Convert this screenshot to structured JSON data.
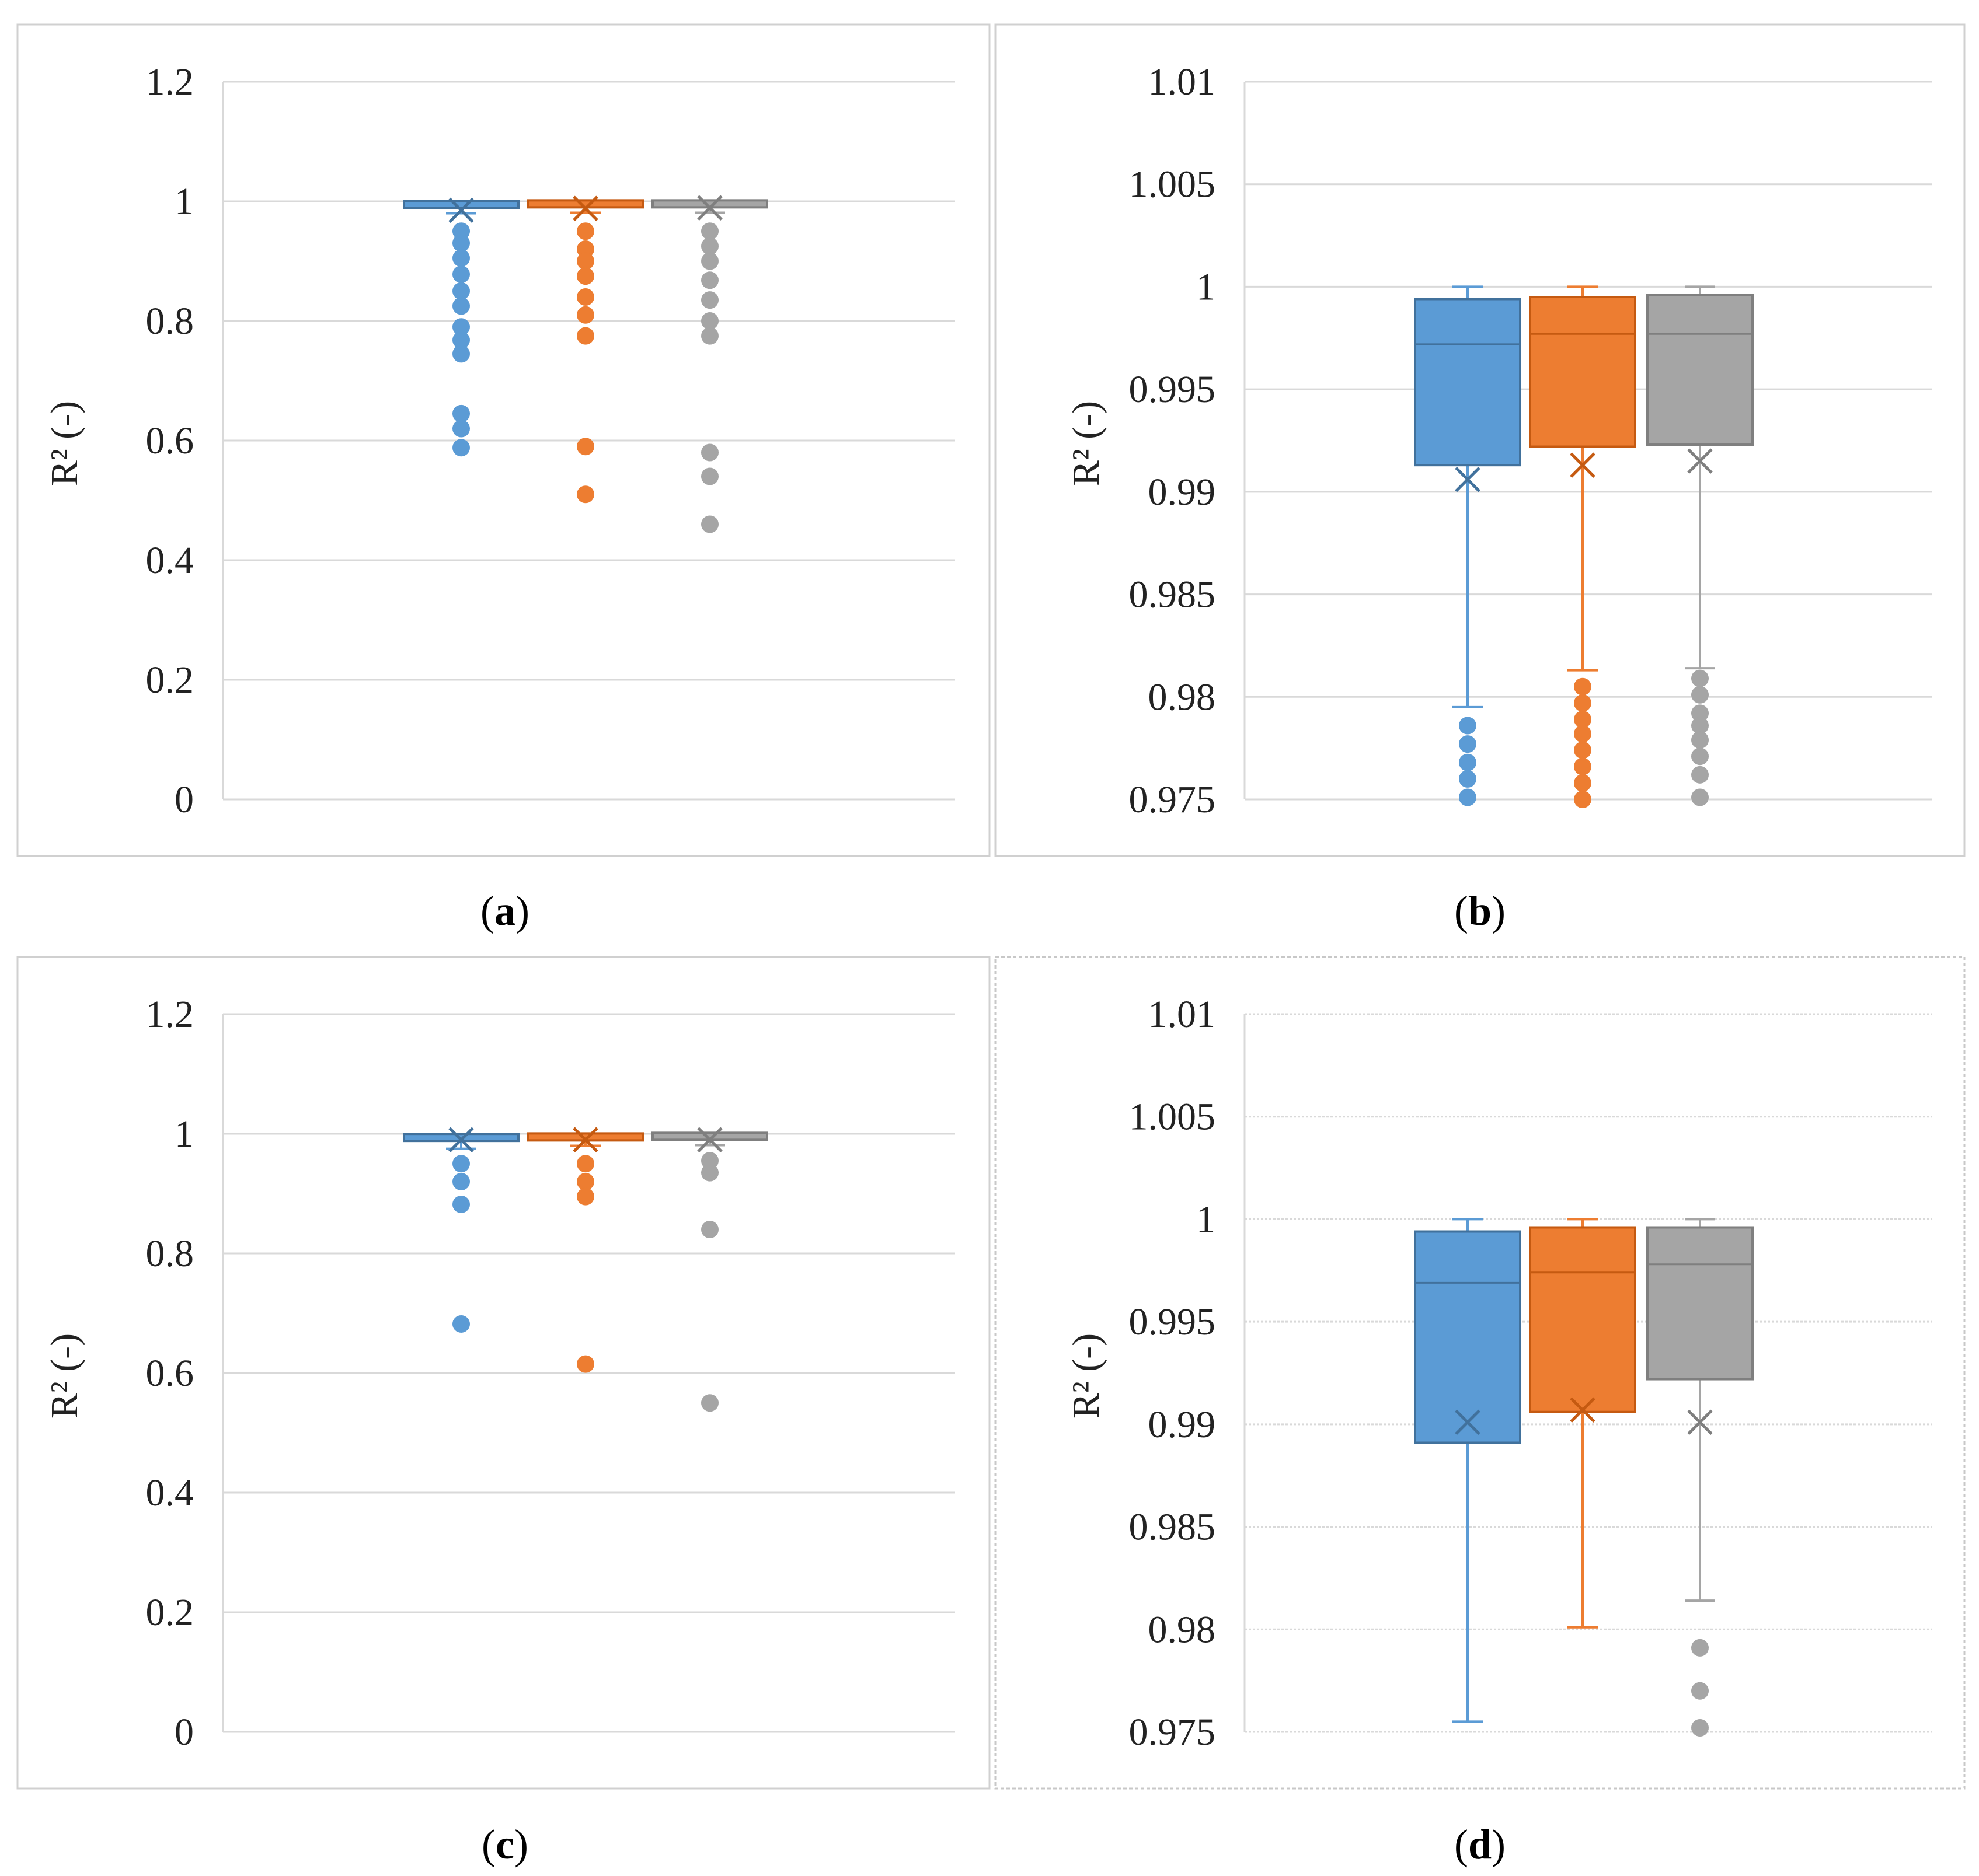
{
  "chart_data": [
    {
      "type": "box",
      "panel": "a",
      "caption": {
        "open": "(",
        "letter": "a",
        "close": ")"
      },
      "ylabel": "R² (-)",
      "ylim": [
        0,
        1.2
      ],
      "yticks": [
        "0",
        "0.2",
        "0.4",
        "0.6",
        "0.8",
        "1",
        "1.2"
      ],
      "ytick_values": [
        0,
        0.2,
        0.4,
        0.6,
        0.8,
        1.0,
        1.2
      ],
      "series": [
        {
          "color": "#5b9bd5",
          "stroke": "#41719c",
          "q1": 0.99,
          "median": 0.997,
          "q3": 0.999,
          "whisker_low": 0.98,
          "whisker_high": 1.0,
          "mean": 0.985,
          "outliers": [
            0.95,
            0.93,
            0.905,
            0.878,
            0.85,
            0.825,
            0.79,
            0.768,
            0.745,
            0.645,
            0.62,
            0.588
          ]
        },
        {
          "color": "#ed7d31",
          "stroke": "#c55a11",
          "q1": 0.992,
          "median": 0.9975,
          "q3": 0.9995,
          "whisker_low": 0.981,
          "whisker_high": 1.0,
          "mean": 0.988,
          "outliers": [
            0.95,
            0.92,
            0.9,
            0.875,
            0.84,
            0.81,
            0.775,
            0.59,
            0.51
          ]
        },
        {
          "color": "#a5a5a5",
          "stroke": "#7f7f7f",
          "q1": 0.992,
          "median": 0.9975,
          "q3": 0.9995,
          "whisker_low": 0.981,
          "whisker_high": 1.0,
          "mean": 0.989,
          "outliers": [
            0.95,
            0.925,
            0.9,
            0.868,
            0.835,
            0.8,
            0.775,
            0.58,
            0.54,
            0.46
          ]
        }
      ]
    },
    {
      "type": "box",
      "panel": "b",
      "caption": {
        "open": "(",
        "letter": "b",
        "close": ")"
      },
      "ylabel": "R² (-)",
      "ylim": [
        0.975,
        1.01
      ],
      "yticks": [
        "0.975",
        "0.98",
        "0.985",
        "0.99",
        "0.995",
        "1",
        "1.005",
        "1.01"
      ],
      "ytick_values": [
        0.975,
        0.98,
        0.985,
        0.99,
        0.995,
        1.0,
        1.005,
        1.01
      ],
      "series": [
        {
          "color": "#5b9bd5",
          "stroke": "#41719c",
          "q1": 0.9913,
          "median": 0.9972,
          "q3": 0.9994,
          "whisker_low": 0.9795,
          "whisker_high": 1.0,
          "mean": 0.9906,
          "outliers": [
            0.9786,
            0.9777,
            0.9768,
            0.976,
            0.9751
          ]
        },
        {
          "color": "#ed7d31",
          "stroke": "#c55a11",
          "q1": 0.9922,
          "median": 0.9977,
          "q3": 0.9995,
          "whisker_low": 0.9813,
          "whisker_high": 1.0,
          "mean": 0.9913,
          "outliers": [
            0.9805,
            0.9797,
            0.9789,
            0.9782,
            0.9774,
            0.9766,
            0.9758,
            0.975
          ]
        },
        {
          "color": "#a5a5a5",
          "stroke": "#7f7f7f",
          "q1": 0.9923,
          "median": 0.9977,
          "q3": 0.9996,
          "whisker_low": 0.9814,
          "whisker_high": 1.0,
          "mean": 0.9915,
          "outliers": [
            0.9809,
            0.9801,
            0.9792,
            0.9786,
            0.9779,
            0.9771,
            0.9762,
            0.9751
          ]
        }
      ]
    },
    {
      "type": "box",
      "panel": "c",
      "caption": {
        "open": "(",
        "letter": "c",
        "close": ")"
      },
      "ylabel": "R² (-)",
      "ylim": [
        0,
        1.2
      ],
      "yticks": [
        "0",
        "0.2",
        "0.4",
        "0.6",
        "0.8",
        "1",
        "1.2"
      ],
      "ytick_values": [
        0,
        0.2,
        0.4,
        0.6,
        0.8,
        1.0,
        1.2
      ],
      "series": [
        {
          "color": "#5b9bd5",
          "stroke": "#41719c",
          "q1": 0.989,
          "median": 0.997,
          "q3": 0.999,
          "whisker_low": 0.975,
          "whisker_high": 1.0,
          "mean": 0.99,
          "outliers": [
            0.95,
            0.92,
            0.882,
            0.682
          ]
        },
        {
          "color": "#ed7d31",
          "stroke": "#c55a11",
          "q1": 0.99,
          "median": 0.997,
          "q3": 0.9995,
          "whisker_low": 0.98,
          "whisker_high": 1.0,
          "mean": 0.99,
          "outliers": [
            0.95,
            0.92,
            0.895,
            0.615
          ]
        },
        {
          "color": "#a5a5a5",
          "stroke": "#7f7f7f",
          "q1": 0.992,
          "median": 0.998,
          "q3": 0.9995,
          "whisker_low": 0.981,
          "whisker_high": 1.0,
          "mean": 0.99,
          "outliers": [
            0.955,
            0.935,
            0.84,
            0.55
          ]
        }
      ]
    },
    {
      "type": "box",
      "panel": "d",
      "caption": {
        "open": "(",
        "letter": "d",
        "close": ")"
      },
      "ylabel": "R² (-)",
      "ylim": [
        0.975,
        1.01
      ],
      "yticks": [
        "0.975",
        "0.98",
        "0.985",
        "0.99",
        "0.995",
        "1",
        "1.005",
        "1.01"
      ],
      "ytick_values": [
        0.975,
        0.98,
        0.985,
        0.99,
        0.995,
        1.0,
        1.005,
        1.01
      ],
      "series": [
        {
          "color": "#5b9bd5",
          "stroke": "#41719c",
          "q1": 0.9891,
          "median": 0.9969,
          "q3": 0.9994,
          "whisker_low": 0.9755,
          "whisker_high": 1.0,
          "mean": 0.9901,
          "outliers": []
        },
        {
          "color": "#ed7d31",
          "stroke": "#c55a11",
          "q1": 0.9906,
          "median": 0.9974,
          "q3": 0.9996,
          "whisker_low": 0.9801,
          "whisker_high": 1.0,
          "mean": 0.9907,
          "outliers": []
        },
        {
          "color": "#a5a5a5",
          "stroke": "#7f7f7f",
          "q1": 0.9922,
          "median": 0.9978,
          "q3": 0.9996,
          "whisker_low": 0.9814,
          "whisker_high": 1.0,
          "mean": 0.9901,
          "outliers": [
            0.9791,
            0.977,
            0.9752
          ]
        }
      ]
    }
  ]
}
